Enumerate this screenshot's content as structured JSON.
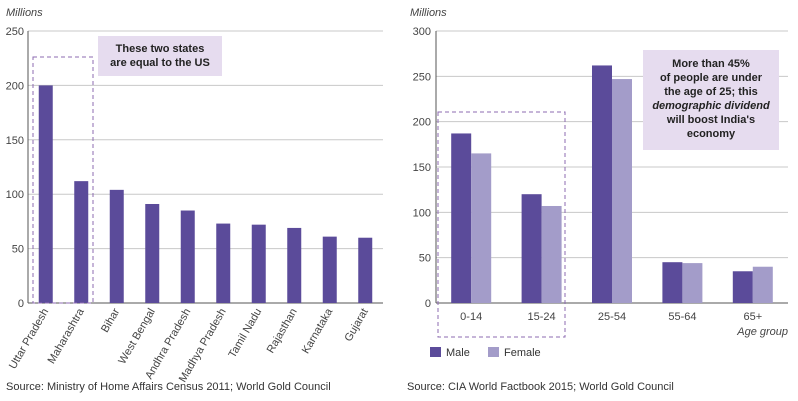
{
  "chart_data": [
    {
      "type": "bar",
      "unit_label": "Millions",
      "categories": [
        "Uttar Pradesh",
        "Maharashtra",
        "Bihar",
        "West Bengal",
        "Andhra Pradesh",
        "Madhya Pradesh",
        "Tamil Nadu",
        "Rajasthan",
        "Karnataka",
        "Gujarat"
      ],
      "values": [
        200,
        112,
        104,
        91,
        85,
        73,
        72,
        69,
        61,
        60
      ],
      "ylim": [
        0,
        250
      ],
      "yticks": [
        "0",
        "50",
        "100",
        "150",
        "200",
        "250"
      ],
      "annotation": {
        "line1": "These two states",
        "line2": "are equal to the US"
      },
      "highlight": "first two categories",
      "source": "Source: Ministry of Home Affairs Census 2011; World Gold Council",
      "color": "#5b4b9a"
    },
    {
      "type": "bar",
      "unit_label": "Millions",
      "xlabel": "Age group",
      "categories": [
        "0-14",
        "15-24",
        "25-54",
        "55-64",
        "65+"
      ],
      "series": [
        {
          "name": "Male",
          "values": [
            187,
            120,
            262,
            45,
            35
          ],
          "color": "#5b4b9a"
        },
        {
          "name": "Female",
          "values": [
            165,
            107,
            247,
            44,
            40
          ],
          "color": "#a39cc9"
        }
      ],
      "ylim": [
        0,
        300
      ],
      "yticks": [
        "0",
        "50",
        "100",
        "150",
        "200",
        "250",
        "300"
      ],
      "annotation": {
        "line1": "More than 45%",
        "line2": "of people are under",
        "line3": "the age of 25; this",
        "line4_emph": "demographic dividend",
        "line5": "will boost India's",
        "line6": "economy"
      },
      "highlight": "first two categories",
      "source": "Source: CIA World Factbook 2015; World Gold Council"
    }
  ],
  "colors": {
    "grid": "#c8c8c8",
    "axis": "#555555",
    "dash": "#8c6bb1",
    "annotation_bg": "#e6dcef"
  }
}
